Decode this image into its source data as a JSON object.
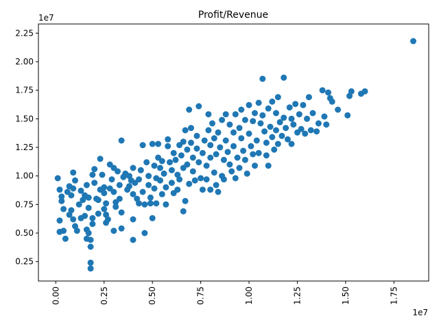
{
  "chart_data": {
    "type": "scatter",
    "title": "Profit/Revenue",
    "xlabel": "",
    "ylabel": "",
    "x_offset_text": "1e7",
    "y_offset_text": "1e7",
    "xlim": [
      -0.9,
      19.3
    ],
    "ylim": [
      0.8,
      23.3
    ],
    "x_ticks": [
      0,
      2.5,
      5,
      7.5,
      10,
      12.5,
      15,
      17.5
    ],
    "x_tick_labels": [
      "0.00",
      "0.25",
      "0.50",
      "0.75",
      "1.00",
      "1.25",
      "1.50",
      "1.75"
    ],
    "y_ticks": [
      2.5,
      5,
      7.5,
      10,
      12.5,
      15,
      17.5,
      20,
      22.5
    ],
    "y_tick_labels": [
      "0.25",
      "0.50",
      "0.75",
      "1.00",
      "1.25",
      "1.50",
      "1.75",
      "2.00",
      "2.25"
    ],
    "grid": false,
    "legend": "none",
    "marker_color": "#1f77b4",
    "units_note": "x and y values are in units of 1e6 (axis offset 1e7)",
    "points": [
      [
        0.1,
        9.8
      ],
      [
        0.2,
        8.8
      ],
      [
        0.3,
        8.2
      ],
      [
        0.3,
        7.8
      ],
      [
        0.4,
        7.1
      ],
      [
        0.2,
        6.1
      ],
      [
        0.2,
        5.1
      ],
      [
        0.5,
        4.5
      ],
      [
        0.4,
        5.2
      ],
      [
        0.6,
        8.6
      ],
      [
        0.7,
        9.1
      ],
      [
        0.8,
        8.3
      ],
      [
        0.9,
        10.3
      ],
      [
        0.9,
        8.9
      ],
      [
        1.0,
        9.6
      ],
      [
        0.8,
        7.0
      ],
      [
        0.7,
        6.6
      ],
      [
        0.9,
        6.2
      ],
      [
        1.0,
        5.6
      ],
      [
        1.1,
        5.2
      ],
      [
        1.2,
        7.5
      ],
      [
        1.3,
        8.7
      ],
      [
        1.4,
        7.9
      ],
      [
        1.3,
        6.3
      ],
      [
        1.5,
        8.3
      ],
      [
        1.5,
        6.5
      ],
      [
        1.6,
        5.3
      ],
      [
        1.6,
        4.5
      ],
      [
        1.7,
        5.0
      ],
      [
        1.8,
        4.4
      ],
      [
        1.8,
        3.8
      ],
      [
        1.8,
        2.4
      ],
      [
        1.8,
        1.9
      ],
      [
        1.9,
        5.8
      ],
      [
        1.9,
        6.3
      ],
      [
        1.7,
        7.2
      ],
      [
        1.6,
        9.2
      ],
      [
        1.7,
        8.1
      ],
      [
        1.9,
        10.1
      ],
      [
        2.0,
        10.6
      ],
      [
        2.0,
        9.4
      ],
      [
        2.1,
        8.0
      ],
      [
        2.2,
        7.9
      ],
      [
        2.2,
        6.7
      ],
      [
        2.3,
        8.8
      ],
      [
        2.3,
        11.5
      ],
      [
        2.4,
        10.1
      ],
      [
        2.5,
        9.0
      ],
      [
        2.5,
        8.5
      ],
      [
        2.6,
        7.6
      ],
      [
        2.5,
        7.1
      ],
      [
        2.6,
        6.6
      ],
      [
        2.7,
        6.2
      ],
      [
        2.6,
        5.9
      ],
      [
        2.8,
        8.9
      ],
      [
        2.8,
        11.0
      ],
      [
        2.9,
        9.7
      ],
      [
        3.0,
        10.7
      ],
      [
        3.0,
        8.6
      ],
      [
        3.1,
        7.7
      ],
      [
        3.1,
        7.3
      ],
      [
        3.0,
        5.2
      ],
      [
        3.2,
        10.4
      ],
      [
        3.3,
        9.2
      ],
      [
        3.3,
        8.0
      ],
      [
        3.4,
        13.1
      ],
      [
        3.4,
        6.8
      ],
      [
        3.4,
        5.4
      ],
      [
        3.5,
        9.9
      ],
      [
        3.6,
        10.2
      ],
      [
        3.7,
        8.8
      ],
      [
        3.8,
        10.0
      ],
      [
        3.8,
        9.1
      ],
      [
        3.9,
        9.6
      ],
      [
        4.0,
        10.7
      ],
      [
        4.0,
        8.4
      ],
      [
        4.0,
        6.2
      ],
      [
        4.0,
        4.4
      ],
      [
        4.1,
        9.4
      ],
      [
        4.2,
        8.0
      ],
      [
        4.3,
        7.6
      ],
      [
        4.3,
        9.7
      ],
      [
        4.4,
        10.5
      ],
      [
        4.5,
        12.7
      ],
      [
        4.5,
        8.6
      ],
      [
        4.6,
        7.5
      ],
      [
        4.6,
        5.0
      ],
      [
        4.7,
        11.2
      ],
      [
        4.8,
        10.0
      ],
      [
        4.8,
        9.2
      ],
      [
        4.9,
        8.1
      ],
      [
        4.9,
        7.6
      ],
      [
        5.0,
        12.8
      ],
      [
        5.0,
        6.3
      ],
      [
        5.1,
        10.9
      ],
      [
        5.1,
        8.9
      ],
      [
        5.2,
        9.8
      ],
      [
        5.2,
        7.6
      ],
      [
        5.3,
        12.8
      ],
      [
        5.3,
        11.6
      ],
      [
        5.4,
        10.7
      ],
      [
        5.4,
        9.6
      ],
      [
        5.5,
        11.3
      ],
      [
        5.5,
        8.4
      ],
      [
        5.6,
        10.2
      ],
      [
        5.7,
        9.0
      ],
      [
        5.7,
        7.5
      ],
      [
        5.8,
        12.6
      ],
      [
        5.8,
        13.2
      ],
      [
        5.9,
        11.2
      ],
      [
        6.0,
        10.5
      ],
      [
        6.0,
        9.4
      ],
      [
        6.1,
        12.0
      ],
      [
        6.1,
        8.5
      ],
      [
        6.2,
        11.4
      ],
      [
        6.3,
        10.1
      ],
      [
        6.3,
        8.8
      ],
      [
        6.4,
        12.7
      ],
      [
        6.4,
        9.7
      ],
      [
        6.5,
        11.8
      ],
      [
        6.6,
        13.0
      ],
      [
        6.6,
        10.7
      ],
      [
        6.6,
        6.9
      ],
      [
        6.7,
        7.8
      ],
      [
        6.7,
        14.0
      ],
      [
        6.8,
        12.3
      ],
      [
        6.8,
        11.0
      ],
      [
        6.9,
        9.3
      ],
      [
        6.9,
        15.8
      ],
      [
        7.0,
        14.2
      ],
      [
        7.0,
        12.9
      ],
      [
        7.1,
        11.6
      ],
      [
        7.1,
        10.4
      ],
      [
        7.2,
        9.6
      ],
      [
        7.3,
        12.4
      ],
      [
        7.3,
        13.5
      ],
      [
        7.4,
        16.1
      ],
      [
        7.4,
        11.2
      ],
      [
        7.5,
        9.8
      ],
      [
        7.6,
        8.8
      ],
      [
        7.6,
        12.0
      ],
      [
        7.7,
        13.1
      ],
      [
        7.8,
        10.9
      ],
      [
        7.8,
        9.7
      ],
      [
        7.9,
        15.4
      ],
      [
        7.9,
        14.0
      ],
      [
        8.0,
        12.7
      ],
      [
        8.0,
        11.6
      ],
      [
        8.0,
        8.8
      ],
      [
        8.1,
        14.6
      ],
      [
        8.2,
        13.3
      ],
      [
        8.2,
        10.3
      ],
      [
        8.3,
        9.2
      ],
      [
        8.3,
        11.9
      ],
      [
        8.4,
        13.8
      ],
      [
        8.4,
        8.6
      ],
      [
        8.5,
        12.5
      ],
      [
        8.6,
        10.0
      ],
      [
        8.6,
        14.9
      ],
      [
        8.7,
        11.4
      ],
      [
        8.7,
        9.7
      ],
      [
        8.8,
        15.4
      ],
      [
        8.8,
        13.1
      ],
      [
        8.9,
        12.1
      ],
      [
        9.0,
        14.5
      ],
      [
        9.0,
        11.0
      ],
      [
        9.1,
        10.4
      ],
      [
        9.2,
        13.8
      ],
      [
        9.2,
        12.6
      ],
      [
        9.3,
        9.8
      ],
      [
        9.3,
        15.4
      ],
      [
        9.4,
        11.6
      ],
      [
        9.5,
        14.2
      ],
      [
        9.5,
        10.7
      ],
      [
        9.6,
        15.8
      ],
      [
        9.6,
        13.3
      ],
      [
        9.7,
        12.2
      ],
      [
        9.8,
        14.9
      ],
      [
        9.8,
        11.4
      ],
      [
        9.9,
        10.2
      ],
      [
        10.0,
        16.2
      ],
      [
        10.0,
        13.7
      ],
      [
        10.1,
        12.6
      ],
      [
        10.2,
        14.8
      ],
      [
        10.2,
        11.9
      ],
      [
        10.3,
        15.5
      ],
      [
        10.3,
        10.9
      ],
      [
        10.4,
        13.1
      ],
      [
        10.5,
        16.4
      ],
      [
        10.5,
        12.0
      ],
      [
        10.6,
        14.6
      ],
      [
        10.7,
        18.5
      ],
      [
        10.7,
        15.3
      ],
      [
        10.8,
        13.9
      ],
      [
        10.9,
        11.8
      ],
      [
        10.9,
        12.9
      ],
      [
        11.0,
        15.9
      ],
      [
        11.0,
        10.9
      ],
      [
        11.1,
        14.3
      ],
      [
        11.2,
        16.5
      ],
      [
        11.2,
        13.4
      ],
      [
        11.3,
        12.3
      ],
      [
        11.4,
        15.5
      ],
      [
        11.4,
        14.0
      ],
      [
        11.5,
        16.9
      ],
      [
        11.5,
        12.8
      ],
      [
        11.6,
        14.7
      ],
      [
        11.7,
        13.5
      ],
      [
        11.8,
        18.6
      ],
      [
        11.8,
        15.1
      ],
      [
        11.9,
        14.2
      ],
      [
        12.0,
        13.2
      ],
      [
        12.1,
        16.0
      ],
      [
        12.2,
        15.0
      ],
      [
        12.2,
        12.8
      ],
      [
        12.3,
        14.5
      ],
      [
        12.4,
        16.3
      ],
      [
        12.5,
        13.8
      ],
      [
        12.6,
        15.4
      ],
      [
        12.7,
        14.1
      ],
      [
        12.8,
        16.2
      ],
      [
        12.9,
        13.7
      ],
      [
        13.0,
        15.0
      ],
      [
        13.1,
        16.9
      ],
      [
        13.2,
        14.0
      ],
      [
        13.3,
        15.5
      ],
      [
        13.5,
        13.9
      ],
      [
        13.6,
        14.6
      ],
      [
        13.8,
        17.5
      ],
      [
        13.9,
        15.2
      ],
      [
        14.0,
        14.5
      ],
      [
        14.1,
        17.3
      ],
      [
        14.2,
        16.8
      ],
      [
        14.3,
        16.5
      ],
      [
        14.6,
        15.8
      ],
      [
        15.1,
        15.3
      ],
      [
        15.2,
        17.0
      ],
      [
        15.3,
        17.4
      ],
      [
        15.8,
        17.2
      ],
      [
        16.0,
        17.4
      ],
      [
        18.5,
        21.8
      ]
    ]
  }
}
